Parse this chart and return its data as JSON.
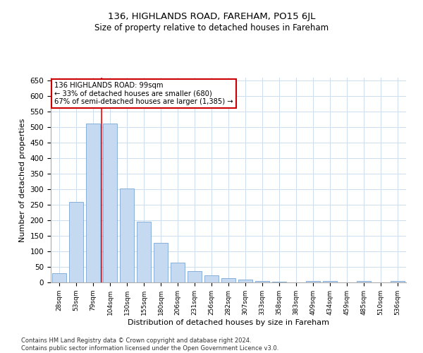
{
  "title": "136, HIGHLANDS ROAD, FAREHAM, PO15 6JL",
  "subtitle": "Size of property relative to detached houses in Fareham",
  "xlabel": "Distribution of detached houses by size in Fareham",
  "ylabel": "Number of detached properties",
  "categories": [
    "28sqm",
    "53sqm",
    "79sqm",
    "104sqm",
    "130sqm",
    "155sqm",
    "180sqm",
    "206sqm",
    "231sqm",
    "256sqm",
    "282sqm",
    "307sqm",
    "333sqm",
    "358sqm",
    "383sqm",
    "409sqm",
    "434sqm",
    "459sqm",
    "485sqm",
    "510sqm",
    "536sqm"
  ],
  "values": [
    30,
    260,
    513,
    513,
    303,
    196,
    128,
    63,
    37,
    22,
    14,
    9,
    5,
    3,
    0,
    5,
    5,
    0,
    5,
    0,
    5
  ],
  "bar_color": "#c5d9f1",
  "bar_edge_color": "#6699cc",
  "red_line_index": 3,
  "annotation_text": "136 HIGHLANDS ROAD: 99sqm\n← 33% of detached houses are smaller (680)\n67% of semi-detached houses are larger (1,385) →",
  "annotation_box_color": "#ffffff",
  "annotation_box_edge": "#cc0000",
  "ylim": [
    0,
    660
  ],
  "yticks": [
    0,
    50,
    100,
    150,
    200,
    250,
    300,
    350,
    400,
    450,
    500,
    550,
    600,
    650
  ],
  "footer": "Contains HM Land Registry data © Crown copyright and database right 2024.\nContains public sector information licensed under the Open Government Licence v3.0.",
  "bg_color": "#ffffff",
  "grid_color": "#ccddee",
  "title_fontsize": 9.5,
  "subtitle_fontsize": 8.5,
  "xlabel_fontsize": 8,
  "ylabel_fontsize": 8
}
